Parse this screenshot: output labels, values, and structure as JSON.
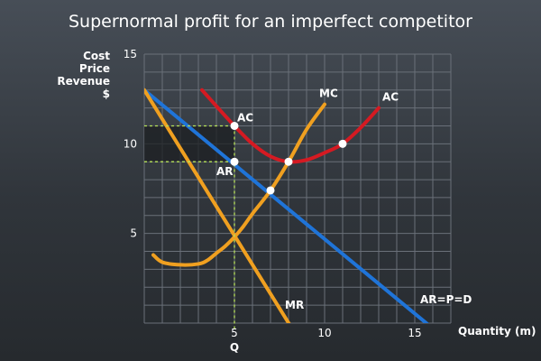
{
  "chart_data": {
    "type": "line",
    "title": "Supernormal profit for an imperfect competitor",
    "ylabel_lines": [
      "Cost",
      "Price",
      "Revenue",
      "$"
    ],
    "xlabel": "Quantity (m)",
    "xlim": [
      0,
      17
    ],
    "ylim": [
      0,
      15
    ],
    "xticks": [
      5,
      10,
      15
    ],
    "yticks": [
      5,
      10,
      15
    ],
    "grid": true,
    "quantity_label": "Q",
    "colors": {
      "ar": "#1f74d8",
      "mc": "#f0a020",
      "mr": "#f0a020",
      "ac": "#d51a22",
      "grid": "#6a7079",
      "guide": "#b7e25a",
      "profit_fill": "#1c1f22"
    },
    "series": [
      {
        "name": "AR=P=D",
        "key": "ar",
        "x": [
          0,
          16.6
        ],
        "y": [
          13,
          -0.8
        ]
      },
      {
        "name": "MR",
        "key": "mr",
        "x": [
          0,
          8.5
        ],
        "y": [
          13,
          -0.8
        ]
      },
      {
        "name": "MC",
        "key": "mc",
        "x": [
          0.5,
          1,
          2,
          3,
          3.5,
          4,
          4.5,
          5,
          5.5,
          6,
          7,
          8,
          9,
          10
        ],
        "y": [
          3.8,
          3.4,
          3.25,
          3.3,
          3.5,
          3.9,
          4.3,
          4.8,
          5.4,
          6.1,
          7.4,
          9.0,
          10.8,
          12.2
        ]
      },
      {
        "name": "AC",
        "key": "ac",
        "x": [
          3.2,
          4,
          5,
          6,
          7,
          8,
          9,
          10,
          11,
          12,
          13
        ],
        "y": [
          13.0,
          12.1,
          11.0,
          10.0,
          9.3,
          9.0,
          9.1,
          9.5,
          10.0,
          10.9,
          12.0
        ]
      }
    ],
    "points": [
      {
        "x": 5,
        "y": 11,
        "label": "AC"
      },
      {
        "x": 5,
        "y": 9,
        "label": "AR"
      },
      {
        "x": 8,
        "y": 9,
        "label": ""
      },
      {
        "x": 7,
        "y": 7.4,
        "label": ""
      },
      {
        "x": 11,
        "y": 10,
        "label": ""
      }
    ],
    "profit_area": {
      "x": [
        0,
        5
      ],
      "y": [
        9,
        11
      ]
    },
    "output_q": 5,
    "curve_labels": [
      {
        "text": "MC",
        "x": 9.7,
        "y": 12.6
      },
      {
        "text": "AC",
        "x": 13.2,
        "y": 12.4
      },
      {
        "text": "MR",
        "x": 7.8,
        "y": 0.8
      },
      {
        "text": "AR=P=D",
        "x": 15.3,
        "y": 1.1
      }
    ]
  }
}
